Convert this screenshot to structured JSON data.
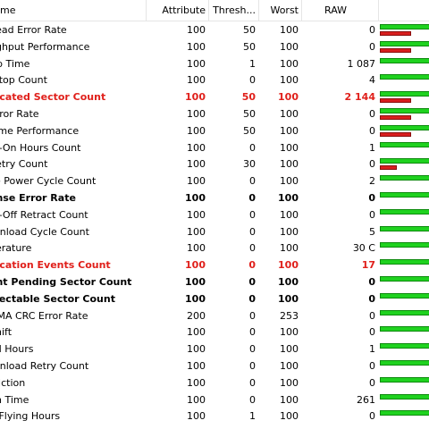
{
  "header": {
    "name": "me",
    "attribute": "Attribute",
    "threshold": "Thresh...",
    "worst": "Worst",
    "raw": "RAW"
  },
  "colors": {
    "bar_green": "#1fd21f",
    "bar_red": "#d81e1e",
    "alert_text": "#e0201b"
  },
  "rows": [
    {
      "name": "Read Error Rate",
      "attr": "100",
      "thr": "50",
      "worst": "100",
      "raw": "0",
      "style": "",
      "red_level": 0.7
    },
    {
      "name": "ughput Performance",
      "attr": "100",
      "thr": "50",
      "worst": "100",
      "raw": "0",
      "style": "",
      "red_level": 0.7
    },
    {
      "name": "Up Time",
      "attr": "100",
      "thr": "1",
      "worst": "100",
      "raw": "1 087",
      "style": "",
      "red_level": 0
    },
    {
      "name": "/Stop Count",
      "attr": "100",
      "thr": "0",
      "worst": "100",
      "raw": "4",
      "style": "",
      "red_level": 0
    },
    {
      "name": "located Sector Count",
      "attr": "100",
      "thr": "50",
      "worst": "100",
      "raw": "2 144",
      "style": "alert",
      "red_level": 0.7
    },
    {
      "name": "Error Rate",
      "attr": "100",
      "thr": "50",
      "worst": "100",
      "raw": "0",
      "style": "",
      "red_level": 0.7
    },
    {
      "name": "Time Performance",
      "attr": "100",
      "thr": "50",
      "worst": "100",
      "raw": "0",
      "style": "",
      "red_level": 0.7
    },
    {
      "name": "er-On Hours Count",
      "attr": "100",
      "thr": "0",
      "worst": "100",
      "raw": "1",
      "style": "",
      "red_level": 0
    },
    {
      "name": "Retry Count",
      "attr": "100",
      "thr": "30",
      "worst": "100",
      "raw": "0",
      "style": "",
      "red_level": 0.38
    },
    {
      "name": "ce Power Cycle Count",
      "attr": "100",
      "thr": "0",
      "worst": "100",
      "raw": "2",
      "style": "",
      "red_level": 0
    },
    {
      "name": "ense Error Rate",
      "attr": "100",
      "thr": "0",
      "worst": "100",
      "raw": "0",
      "style": "crit",
      "red_level": 0
    },
    {
      "name": "er-Off Retract Count",
      "attr": "100",
      "thr": "0",
      "worst": "100",
      "raw": "0",
      "style": "",
      "red_level": 0
    },
    {
      "name": "/Unload Cycle Count",
      "attr": "100",
      "thr": "0",
      "worst": "100",
      "raw": "5",
      "style": "",
      "red_level": 0
    },
    {
      "name": "perature",
      "attr": "100",
      "thr": "0",
      "worst": "100",
      "raw": "30 C",
      "style": "",
      "red_level": 0
    },
    {
      "name": "location Events Count",
      "attr": "100",
      "thr": "0",
      "worst": "100",
      "raw": "17",
      "style": "alert",
      "red_level": 0
    },
    {
      "name": "ent Pending Sector Count",
      "attr": "100",
      "thr": "0",
      "worst": "100",
      "raw": "0",
      "style": "crit",
      "red_level": 0
    },
    {
      "name": "rrectable Sector Count",
      "attr": "100",
      "thr": "0",
      "worst": "100",
      "raw": "0",
      "style": "crit",
      "red_level": 0
    },
    {
      "name": "DMA CRC Error Rate",
      "attr": "200",
      "thr": "0",
      "worst": "253",
      "raw": "0",
      "style": "",
      "red_level": 0
    },
    {
      "name": "Shift",
      "attr": "100",
      "thr": "0",
      "worst": "100",
      "raw": "0",
      "style": "",
      "red_level": 0
    },
    {
      "name": "ed Hours",
      "attr": "100",
      "thr": "0",
      "worst": "100",
      "raw": "1",
      "style": "",
      "red_level": 0
    },
    {
      "name": "/Unload Retry Count",
      "attr": "100",
      "thr": "0",
      "worst": "100",
      "raw": "0",
      "style": "",
      "red_level": 0
    },
    {
      "name": "Friction",
      "attr": "100",
      "thr": "0",
      "worst": "100",
      "raw": "0",
      "style": "",
      "red_level": 0
    },
    {
      "name": "-in Time",
      "attr": "100",
      "thr": "0",
      "worst": "100",
      "raw": "261",
      "style": "",
      "red_level": 0
    },
    {
      "name": "d Flying Hours",
      "attr": "100",
      "thr": "1",
      "worst": "100",
      "raw": "0",
      "style": "",
      "red_level": 0
    }
  ]
}
